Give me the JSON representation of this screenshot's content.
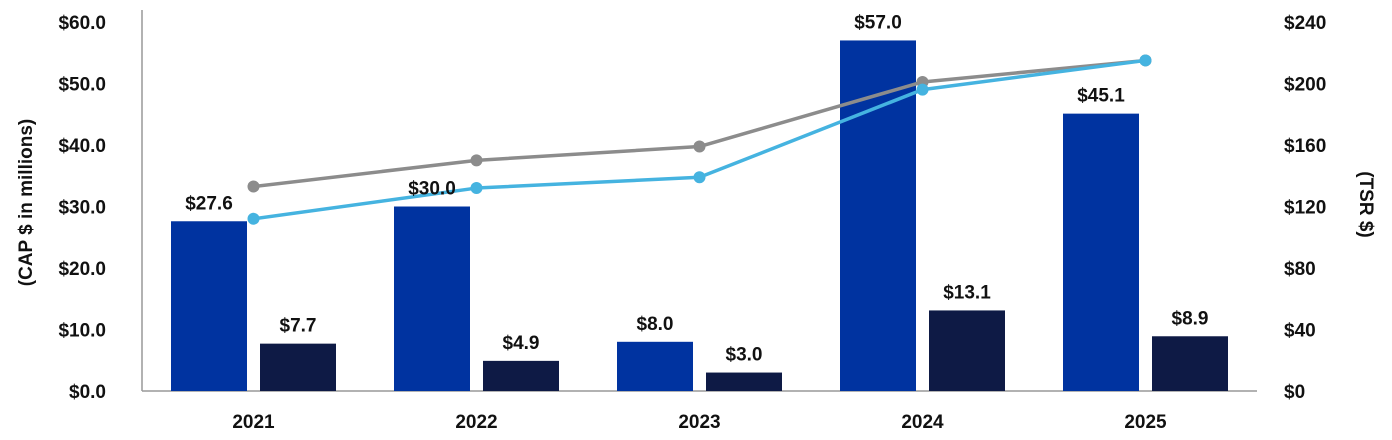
{
  "chart_data": {
    "type": "bar",
    "categories": [
      "2021",
      "2022",
      "2023",
      "2024",
      "2025"
    ],
    "left_axis": {
      "title": "(CAP $ in millions)",
      "ylim": [
        0,
        60
      ],
      "ticks": [
        0,
        10,
        20,
        30,
        40,
        50,
        60
      ],
      "tick_labels": [
        "$0.0",
        "$10.0",
        "$20.0",
        "$30.0",
        "$40.0",
        "$50.0",
        "$60.0"
      ]
    },
    "right_axis": {
      "title": "(TSR $)",
      "ylim": [
        0,
        240
      ],
      "ticks": [
        0,
        40,
        80,
        120,
        160,
        200,
        240
      ],
      "tick_labels": [
        "$0",
        "$40",
        "$80",
        "$120",
        "$160",
        "$200",
        "$240"
      ]
    },
    "bar_series": [
      {
        "name": "series-1",
        "color": "#0033A0",
        "values": [
          27.6,
          30.0,
          8.0,
          57.0,
          45.1
        ],
        "labels": [
          "$27.6",
          "$30.0",
          "$8.0",
          "$57.0",
          "$45.1"
        ]
      },
      {
        "name": "series-2",
        "color": "#0E1A45",
        "values": [
          7.7,
          4.9,
          3.0,
          13.1,
          8.9
        ],
        "labels": [
          "$7.7",
          "$4.9",
          "$3.0",
          "$13.1",
          "$8.9"
        ]
      }
    ],
    "line_series": [
      {
        "name": "gray-line",
        "color": "#8C8C8C",
        "values": [
          133,
          150,
          159,
          201,
          215
        ]
      },
      {
        "name": "blue-line",
        "color": "#45B3E0",
        "values": [
          112,
          132,
          139,
          196,
          215
        ]
      }
    ]
  }
}
